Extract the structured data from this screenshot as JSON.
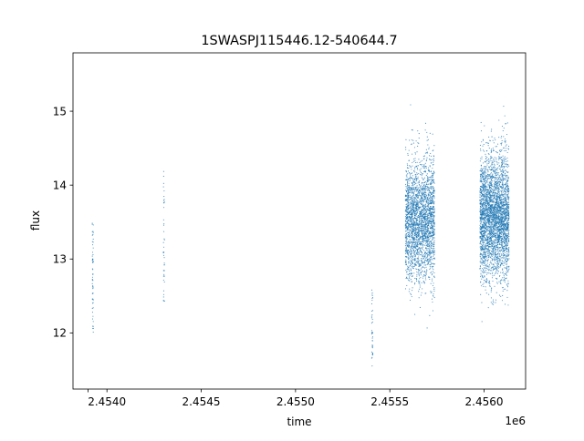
{
  "chart_data": {
    "type": "scatter",
    "title": "1SWASPJ115446.12-540644.7",
    "xlabel": "time",
    "ylabel": "flux",
    "x_offset_label": "1e6",
    "xlim": [
      2453820,
      2456220
    ],
    "ylim": [
      11.24,
      15.79
    ],
    "x_ticks": [
      2453900,
      2454000,
      2454500,
      2455000,
      2455500,
      2456000
    ],
    "x_tick_labels": [
      "",
      "2.4540",
      "2.4545",
      "2.4550",
      "2.4555",
      "2.4560"
    ],
    "y_ticks": [
      12,
      13,
      14,
      15
    ],
    "y_tick_labels": [
      "12",
      "13",
      "14",
      "15"
    ],
    "grid": false,
    "marker_color": "#1f77b4",
    "series": [
      {
        "clusters": [
          {
            "x_center": 2453925,
            "x_width": 6,
            "y_center": 12.75,
            "y_spread": 0.75,
            "count": 60
          },
          {
            "x_center": 2454302,
            "x_width": 6,
            "y_center": 13.3,
            "y_spread": 0.9,
            "count": 45
          },
          {
            "x_center": 2455407,
            "x_width": 6,
            "y_center": 12.1,
            "y_spread": 0.55,
            "count": 40
          },
          {
            "x_center": 2455660,
            "x_width": 155,
            "y_center": 13.52,
            "y_spread": 0.42,
            "count": 2600
          },
          {
            "x_center": 2456055,
            "x_width": 155,
            "y_center": 13.58,
            "y_spread": 0.42,
            "count": 3400
          }
        ],
        "x_range": [
          2453925,
          2456090
        ],
        "y_range": [
          11.45,
          15.58
        ]
      }
    ]
  }
}
